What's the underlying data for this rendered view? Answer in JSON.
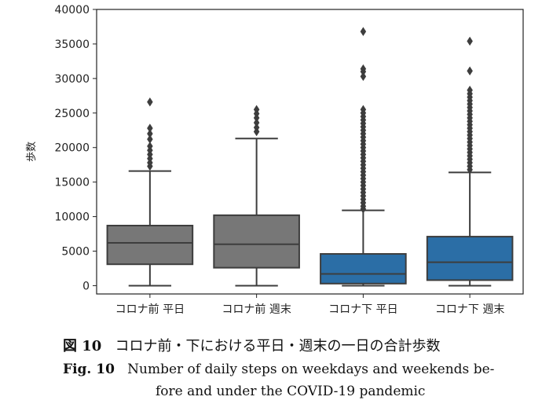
{
  "chart_data": {
    "type": "box",
    "ylabel": "歩数",
    "xlabel": "",
    "ylim": [
      -1200,
      40000
    ],
    "yticks": [
      0,
      5000,
      10000,
      15000,
      20000,
      25000,
      30000,
      35000,
      40000
    ],
    "grid": false,
    "categories": [
      "コロナ前 平日",
      "コロナ前 週末",
      "コロナ下 平日",
      "コロナ下 週末"
    ],
    "boxes": [
      {
        "category": "コロナ前 平日",
        "color": "#777777",
        "whisker_low": 0,
        "q1": 3100,
        "median": 6200,
        "q3": 8700,
        "whisker_high": 16600,
        "outliers": [
          17300,
          17800,
          18400,
          19000,
          19600,
          20200,
          21200,
          22000,
          22800,
          26600
        ]
      },
      {
        "category": "コロナ前 週末",
        "color": "#777777",
        "whisker_low": 0,
        "q1": 2600,
        "median": 6000,
        "q3": 10200,
        "whisker_high": 21300,
        "outliers": [
          22300,
          22900,
          23600,
          24300,
          24900,
          25500
        ]
      },
      {
        "category": "コロナ下 平日",
        "color": "#2b6ea6",
        "whisker_low": 0,
        "q1": 300,
        "median": 1700,
        "q3": 4600,
        "whisker_high": 10900,
        "outliers": [
          11100,
          11500,
          12000,
          12500,
          13000,
          13500,
          14000,
          14500,
          15000,
          15500,
          16000,
          16500,
          17000,
          17500,
          18000,
          18500,
          19000,
          19500,
          20000,
          20500,
          21000,
          21500,
          22000,
          22500,
          23000,
          23500,
          24000,
          24500,
          25000,
          25500,
          30300,
          31000,
          31400,
          36800
        ]
      },
      {
        "category": "コロナ下 週末",
        "color": "#2b6ea6",
        "whisker_low": 0,
        "q1": 800,
        "median": 3400,
        "q3": 7100,
        "whisker_high": 16400,
        "outliers": [
          16800,
          17300,
          17800,
          18300,
          18800,
          19300,
          19800,
          20300,
          20800,
          21300,
          21800,
          22300,
          22800,
          23300,
          23800,
          24300,
          24800,
          25300,
          25800,
          26300,
          26800,
          27300,
          27800,
          28300,
          31100,
          35400
        ]
      }
    ]
  },
  "caption": {
    "jp_label": "図 10",
    "jp_text": "コロナ前・下における平日・週末の一日の合計歩数",
    "en_label": "Fig. 10",
    "en_text_line1": "Number of daily steps on weekdays and weekends be-",
    "en_text_line2": "fore and under the COVID-19 pandemic"
  }
}
